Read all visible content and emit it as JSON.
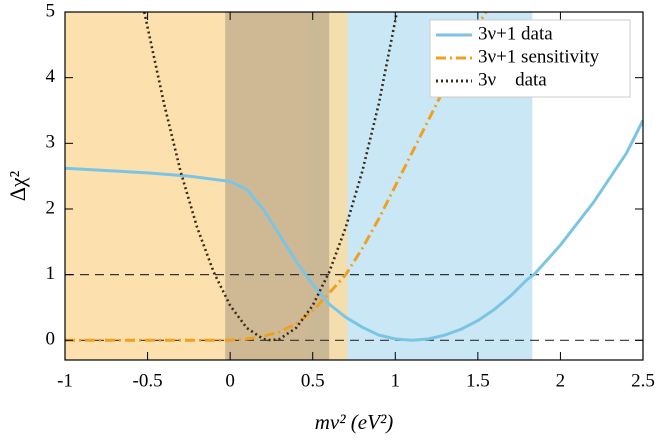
{
  "chart_data": {
    "type": "line",
    "xlabel": "mν² (eV²)",
    "ylabel": "Δχ²",
    "xlim": [
      -1,
      2.5
    ],
    "ylim": [
      -0.3,
      5
    ],
    "xticks": [
      -1,
      -0.5,
      0,
      0.5,
      1,
      1.5,
      2,
      2.5
    ],
    "yticks": [
      0,
      1,
      2,
      3,
      4,
      5
    ],
    "hlines": [
      1,
      0
    ],
    "legend": "upper right",
    "shaded_regions": [
      {
        "xmin": 0.46,
        "xmax": 1.83,
        "color": "#bfe3f3"
      },
      {
        "xmin": -1,
        "xmax": 0.71,
        "color": "#fcdca0"
      },
      {
        "xmin": -0.03,
        "xmax": 0.6,
        "color": "#9a8a78"
      }
    ],
    "series": [
      {
        "name": "3ν+1 data",
        "color": "#7cc4e4",
        "style": "solid",
        "x": [
          -1,
          -0.5,
          -0.25,
          0,
          0.1,
          0.2,
          0.3,
          0.4,
          0.5,
          0.6,
          0.7,
          0.8,
          0.9,
          1.0,
          1.1,
          1.2,
          1.3,
          1.4,
          1.5,
          1.6,
          1.7,
          1.8,
          1.84,
          2.0,
          2.2,
          2.4,
          2.5
        ],
        "values": [
          2.62,
          2.55,
          2.5,
          2.42,
          2.3,
          2.0,
          1.6,
          1.2,
          0.85,
          0.55,
          0.35,
          0.2,
          0.08,
          0.02,
          0.0,
          0.02,
          0.08,
          0.17,
          0.3,
          0.47,
          0.68,
          0.93,
          1.0,
          1.45,
          2.1,
          2.85,
          3.35
        ]
      },
      {
        "name": "3ν+1 sensitivity",
        "color": "#f0a020",
        "style": "dashdot",
        "x": [
          -1,
          0,
          0.1,
          0.2,
          0.3,
          0.4,
          0.5,
          0.6,
          0.7,
          0.8,
          0.9,
          1.0,
          1.1,
          1.2,
          1.3,
          1.4,
          1.5,
          1.55
        ],
        "values": [
          0,
          0,
          0.02,
          0.06,
          0.13,
          0.25,
          0.45,
          0.72,
          1.0,
          1.4,
          1.85,
          2.35,
          2.85,
          3.35,
          3.85,
          4.35,
          4.8,
          5.0
        ]
      },
      {
        "name": "3ν    data",
        "color": "#3a2a1a",
        "style": "dotted",
        "x": [
          -0.52,
          -0.4,
          -0.3,
          -0.2,
          -0.1,
          0,
          0.1,
          0.2,
          0.25,
          0.3,
          0.4,
          0.5,
          0.6,
          0.7,
          0.8,
          0.9,
          1.01
        ],
        "values": [
          5.0,
          3.6,
          2.57,
          1.72,
          1.04,
          0.53,
          0.19,
          0.02,
          0,
          0.02,
          0.19,
          0.53,
          1.04,
          1.72,
          2.57,
          3.6,
          5.0
        ]
      }
    ]
  }
}
